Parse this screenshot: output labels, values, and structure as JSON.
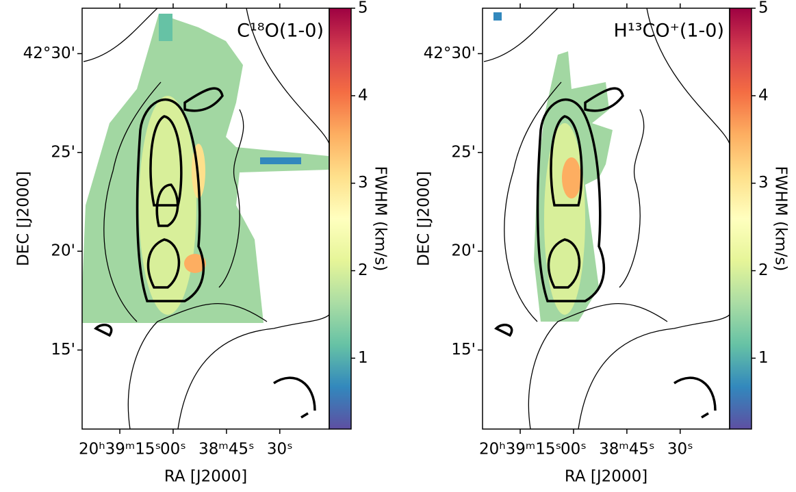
{
  "chart_data": [
    {
      "type": "heatmap",
      "title": "C¹⁸O(1-0)",
      "xlabel": "RA [J2000]",
      "ylabel": "DEC [J2000]",
      "xlim": [
        74365.6,
        74296.1
      ],
      "xticks": [
        {
          "value": 74355,
          "label": "20ʰ39ᵐ15ˢ"
        },
        {
          "value": 74340,
          "label": "00ˢ"
        },
        {
          "value": 74325,
          "label": "38ᵐ45ˢ"
        },
        {
          "value": 74310,
          "label": "30ˢ"
        }
      ],
      "ylim": [
        11.0,
        32.3
      ],
      "yticks": [
        {
          "value": 30,
          "label": "42°30'"
        },
        {
          "value": 25,
          "label": "25'"
        },
        {
          "value": 20,
          "label": "20'"
        },
        {
          "value": 15,
          "label": "15'"
        }
      ],
      "colorbar": {
        "label": "FWHM (km/s)",
        "clim": [
          0.19,
          5
        ],
        "ticks": [
          1,
          2,
          3,
          4,
          5
        ],
        "colormap": [
          "#5e4fa2",
          "#3288bd",
          "#66c2a5",
          "#abdda4",
          "#e6f598",
          "#ffffbf",
          "#fee08b",
          "#fdae61",
          "#f46d43",
          "#d53e4f",
          "#9e0142"
        ]
      }
    },
    {
      "type": "heatmap",
      "title": "H¹³CO⁺(1-0)",
      "xlabel": "RA [J2000]",
      "ylabel": "DEC [J2000]",
      "xlim": [
        74365.6,
        74296.1
      ],
      "xticks": [
        {
          "value": 74355,
          "label": "20ʰ39ᵐ15ˢ"
        },
        {
          "value": 74340,
          "label": "00ˢ"
        },
        {
          "value": 74325,
          "label": "38ᵐ45ˢ"
        },
        {
          "value": 74310,
          "label": "30ˢ"
        }
      ],
      "ylim": [
        11.0,
        32.3
      ],
      "yticks": [
        {
          "value": 30,
          "label": "42°30'"
        },
        {
          "value": 25,
          "label": "25'"
        },
        {
          "value": 20,
          "label": "20'"
        },
        {
          "value": 15,
          "label": "15'"
        }
      ],
      "colorbar": {
        "label": "FWHM (km/s)",
        "clim": [
          0.19,
          5
        ],
        "ticks": [
          1,
          2,
          3,
          4,
          5
        ],
        "colormap": [
          "#5e4fa2",
          "#3288bd",
          "#66c2a5",
          "#abdda4",
          "#e6f598",
          "#ffffbf",
          "#fee08b",
          "#fdae61",
          "#f46d43",
          "#d53e4f",
          "#9e0142"
        ]
      }
    }
  ]
}
